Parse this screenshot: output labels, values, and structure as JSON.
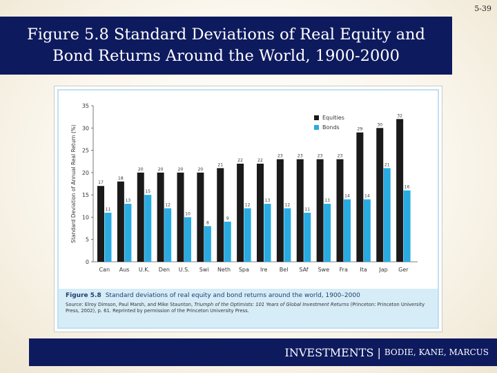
{
  "page_number": "5-39",
  "slide_title": "Figure 5.8 Standard Deviations of Real Equity and Bond Returns Around the World, 1900-2000",
  "footer": {
    "main": "INVESTMENTS",
    "separator": "|",
    "authors": "BODIE, KANE, MARCUS"
  },
  "caption": {
    "label": "Figure 5.8",
    "text": "Standard deviations of real equity and bond returns around the world, 1900–2000",
    "source_prefix": "Source: Elroy Dimson, Paul Marsh, and Mike Staunton, ",
    "source_book": "Triumph of the Optimists: 101 Years of Global Investment Returns",
    "source_suffix": " (Princeton: Princeton University Press, 2002), p. 61. Reprinted by permission of the Princeton University Press."
  },
  "colors": {
    "equities": "#1a1a1a",
    "bonds": "#29abe2",
    "title_bg": "#0e1a5e",
    "caption_bg": "#d6ecf7"
  },
  "chart_data": {
    "type": "bar",
    "title": "",
    "xlabel": "",
    "ylabel": "Standard Deviation of Annual Real Return (%)",
    "ylim": [
      0,
      35
    ],
    "yticks": [
      0,
      5,
      10,
      15,
      20,
      25,
      30,
      35
    ],
    "legend_position": "top-right",
    "grid": false,
    "categories": [
      "Can",
      "Aus",
      "U.K.",
      "Den",
      "U.S.",
      "Swi",
      "Neth",
      "Spa",
      "Ire",
      "Bel",
      "SAf",
      "Swe",
      "Fra",
      "Ita",
      "Jap",
      "Ger"
    ],
    "series": [
      {
        "name": "Equities",
        "values": [
          17,
          18,
          20,
          20,
          20,
          20,
          21,
          22,
          22,
          23,
          23,
          23,
          23,
          29,
          30,
          32
        ]
      },
      {
        "name": "Bonds",
        "values": [
          11,
          13,
          15,
          12,
          10,
          8,
          9,
          12,
          13,
          12,
          11,
          13,
          14,
          14,
          21,
          16
        ]
      }
    ]
  }
}
